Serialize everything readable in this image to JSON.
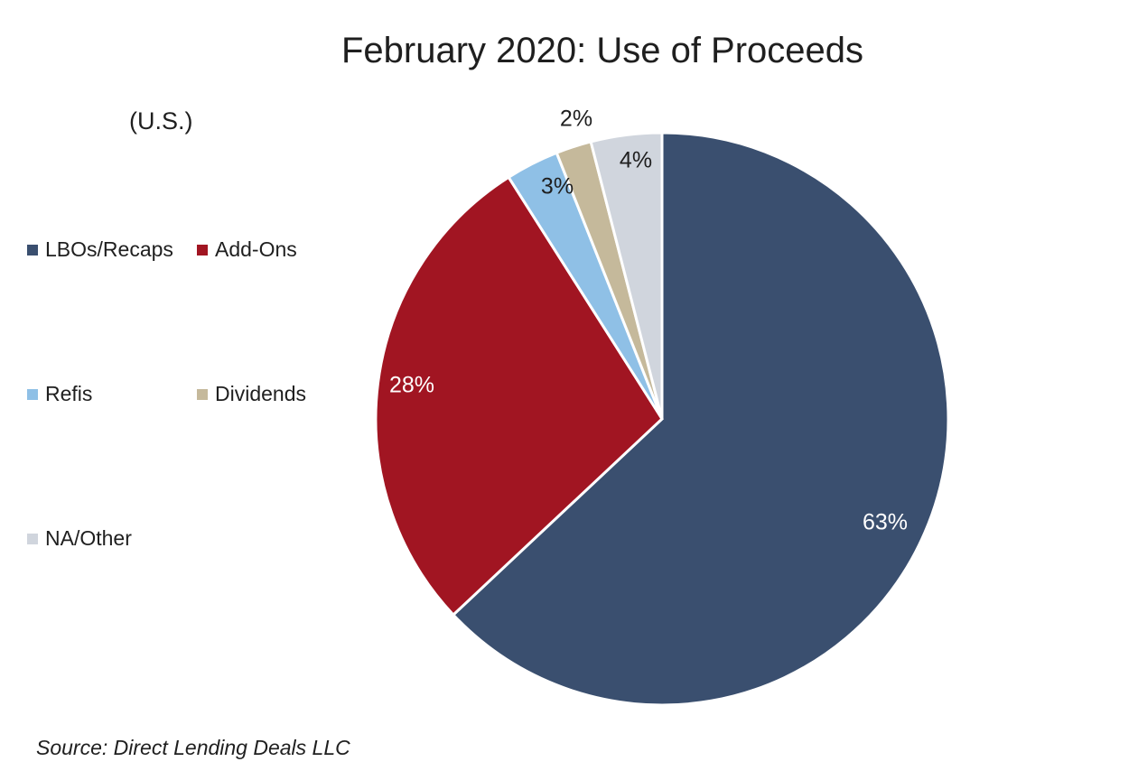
{
  "chart_data": {
    "type": "pie",
    "title": "February 2020: Use of Proceeds",
    "subtitle": "(U.S.)",
    "legend_position": "left",
    "slices": [
      {
        "name": "LBOs/Recaps",
        "value": 63,
        "label": "63%",
        "color": "#3a4f6f",
        "label_color": "#ffffff"
      },
      {
        "name": "Add-Ons",
        "value": 28,
        "label": "28%",
        "color": "#a11522",
        "label_color": "#ffffff"
      },
      {
        "name": "Refis",
        "value": 3,
        "label": "3%",
        "color": "#8fc0e6",
        "label_color": "#1f1f1f"
      },
      {
        "name": "Dividends",
        "value": 2,
        "label": "2%",
        "color": "#c5b99b",
        "label_color": "#1f1f1f"
      },
      {
        "name": "NA/Other",
        "value": 4,
        "label": "4%",
        "color": "#d0d5dd",
        "label_color": "#1f1f1f"
      }
    ],
    "source": "Source: Direct Lending Deals LLC"
  }
}
